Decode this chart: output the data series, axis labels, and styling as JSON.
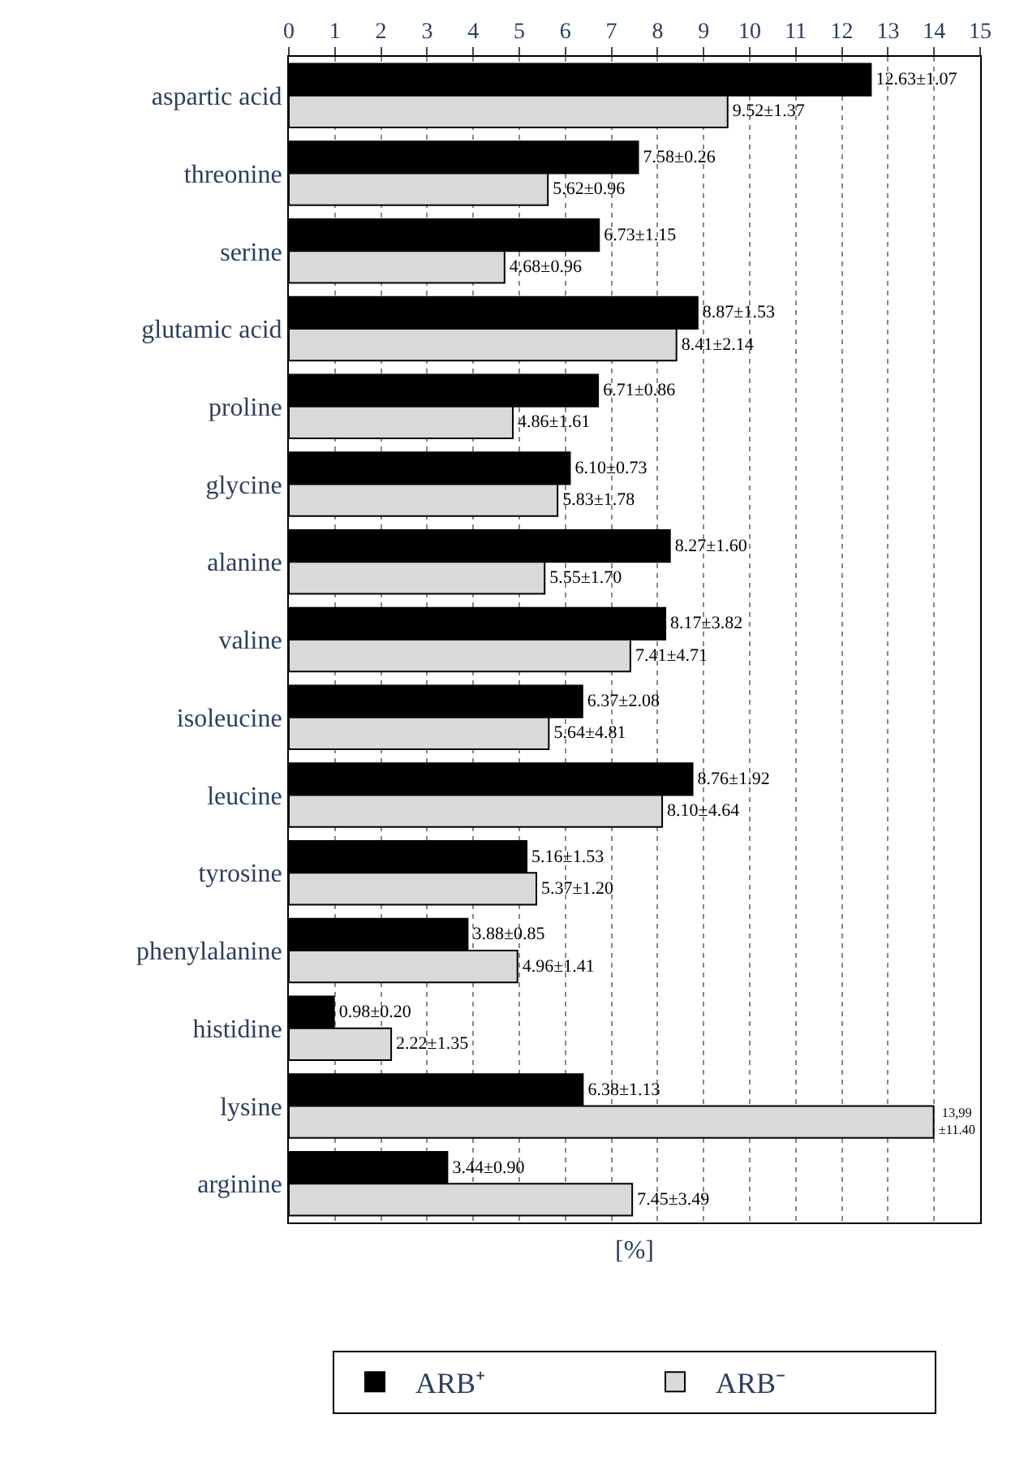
{
  "chart_data": {
    "type": "bar",
    "orientation": "horizontal",
    "xlabel": "[%]",
    "categories": [
      "aspartic acid",
      "threonine",
      "serine",
      "glutamic acid",
      "proline",
      "glycine",
      "alanine",
      "valine",
      "isoleucine",
      "leucine",
      "tyrosine",
      "phenylalanine",
      "histidine",
      "lysine",
      "arginine"
    ],
    "series": [
      {
        "name": "ARB⁺",
        "color": "#000000",
        "values": [
          12.63,
          7.58,
          6.73,
          8.87,
          6.71,
          6.1,
          8.27,
          8.17,
          6.37,
          8.76,
          5.16,
          3.88,
          0.98,
          6.38,
          3.44
        ],
        "value_labels": [
          "12.63±1.07",
          "7.58±0.26",
          "6.73±1.15",
          "8.87±1.53",
          "6.71±0.86",
          "6.10±0.73",
          "8.27±1.60",
          "8.17±3.82",
          "6.37±2.08",
          "8.76±1.92",
          "5.16±1.53",
          "3.88±0.85",
          "0.98±0.20",
          "6.38±1.13",
          "3.44±0.90"
        ]
      },
      {
        "name": "ARB⁻",
        "color": "#d9d9d9",
        "values": [
          9.52,
          5.62,
          4.68,
          8.41,
          4.86,
          5.83,
          5.55,
          7.41,
          5.64,
          8.1,
          5.37,
          4.96,
          2.22,
          13.99,
          7.45
        ],
        "value_labels": [
          "9.52±1.37",
          "5.62±0.96",
          "4.68±0.96",
          "8.41±2.14",
          "4.86±1.61",
          "5.83±1.78",
          "5.55±1.70",
          "7.41±4.71",
          "5.64±4.81",
          "8.10±4.64",
          "5.37±1.20",
          "4.96±1.41",
          "2.22±1.35",
          "13,99\n±11.40",
          "7.45±3.49"
        ]
      }
    ],
    "xlim": [
      0,
      15
    ],
    "xticks": [
      0,
      1,
      2,
      3,
      4,
      5,
      6,
      7,
      8,
      9,
      10,
      11,
      12,
      13,
      14,
      15
    ],
    "grid": "x",
    "legend": "bottom"
  }
}
